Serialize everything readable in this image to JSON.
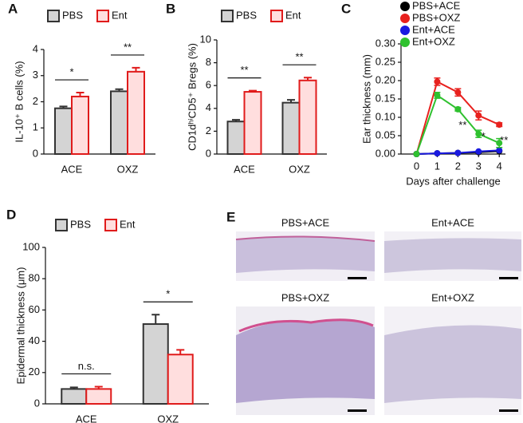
{
  "chart_data": [
    {
      "type": "bar",
      "label": "A",
      "ylabel": "IL-10⁺ B cells (%)",
      "categories": [
        "ACE",
        "OXZ"
      ],
      "series": [
        {
          "name": "PBS",
          "color": "#d4d4d4",
          "edgecolor": "#333333",
          "values": [
            1.75,
            2.4
          ],
          "errors": [
            0.07,
            0.08
          ]
        },
        {
          "name": "Ent",
          "color": "#ffdede",
          "edgecolor": "#e01b1b",
          "values": [
            2.2,
            3.15
          ],
          "errors": [
            0.15,
            0.15
          ]
        }
      ],
      "significance": [
        "*",
        "**"
      ],
      "ylim": [
        0,
        4
      ],
      "yticks": [
        0,
        1,
        2,
        3,
        4
      ]
    },
    {
      "type": "bar",
      "label": "B",
      "ylabel": "CD1dʰⁱCD5⁺ Bregs (%)",
      "categories": [
        "ACE",
        "OXZ"
      ],
      "series": [
        {
          "name": "PBS",
          "color": "#d4d4d4",
          "edgecolor": "#333333",
          "values": [
            2.85,
            4.5
          ],
          "errors": [
            0.15,
            0.25
          ]
        },
        {
          "name": "Ent",
          "color": "#ffdede",
          "edgecolor": "#e01b1b",
          "values": [
            5.45,
            6.45
          ],
          "errors": [
            0.1,
            0.25
          ]
        }
      ],
      "significance": [
        "**",
        "**"
      ],
      "ylim": [
        0,
        10
      ],
      "yticks": [
        0,
        2,
        4,
        6,
        8,
        10
      ]
    },
    {
      "type": "line",
      "label": "C",
      "xlabel": "Days after challenge",
      "ylabel": "Ear thickness (mm)",
      "x": [
        0,
        1,
        2,
        3,
        4
      ],
      "xlim": [
        -0.75,
        4.3
      ],
      "xticks": [
        0,
        1,
        2,
        3,
        4
      ],
      "ylim": [
        0,
        0.3
      ],
      "yticks": [
        {
          "value": 0,
          "label": "0.00"
        },
        {
          "value": 0.05,
          "label": "0.05"
        },
        {
          "value": 0.1,
          "label": "0.10"
        },
        {
          "value": 0.15,
          "label": "0.15"
        },
        {
          "value": 0.2,
          "label": "0.20"
        },
        {
          "value": 0.25,
          "label": "0.25"
        },
        {
          "value": 0.3,
          "label": "0.30"
        }
      ],
      "series": [
        {
          "name": "PBS+ACE",
          "color": "#000000",
          "values": [
            0,
            0.002,
            0.003,
            0.005,
            0.008
          ]
        },
        {
          "name": "PBS+OXZ",
          "color": "#e8211e",
          "values": [
            0,
            0.197,
            0.168,
            0.105,
            0.08
          ],
          "errors": [
            0,
            0.01,
            0.01,
            0.012,
            0.005
          ]
        },
        {
          "name": "Ent+ACE",
          "color": "#1a1ae0",
          "values": [
            0,
            0.002,
            0.003,
            0.007,
            0.01
          ]
        },
        {
          "name": "Ent+OXZ",
          "color": "#2fc12f",
          "values": [
            0,
            0.16,
            0.122,
            0.055,
            0.03
          ],
          "errors": [
            0,
            0.008,
            0.005,
            0.01,
            0.012
          ]
        }
      ],
      "significance": [
        null,
        null,
        "**",
        "*",
        "**"
      ]
    },
    {
      "type": "bar",
      "label": "D",
      "ylabel": "Epidermal thickness (μm)",
      "categories": [
        "ACE",
        "OXZ"
      ],
      "series": [
        {
          "name": "PBS",
          "color": "#d4d4d4",
          "edgecolor": "#333333",
          "values": [
            9.5,
            51
          ],
          "errors": [
            1,
            6
          ]
        },
        {
          "name": "Ent",
          "color": "#ffdede",
          "edgecolor": "#e01b1b",
          "values": [
            9.5,
            31.5
          ],
          "errors": [
            1.5,
            3
          ]
        }
      ],
      "significance": [
        "n.s.",
        "*"
      ],
      "ylim": [
        0,
        100
      ],
      "yticks": [
        0,
        20,
        40,
        60,
        80,
        100
      ]
    }
  ],
  "panel_e": {
    "label": "E",
    "images": [
      "PBS+ACE",
      "Ent+ACE",
      "PBS+OXZ",
      "Ent+OXZ"
    ]
  }
}
